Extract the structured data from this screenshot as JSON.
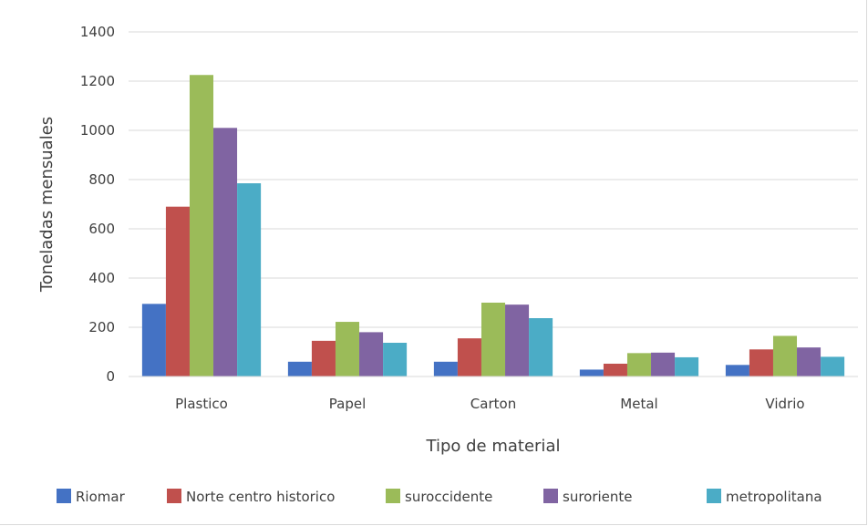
{
  "chart_data": {
    "type": "bar",
    "title": "",
    "xlabel": "Tipo de material",
    "ylabel": "Toneladas mensuales",
    "ylim": [
      0,
      1400
    ],
    "yticks": [
      0,
      200,
      400,
      600,
      800,
      1000,
      1200,
      1400
    ],
    "grid": true,
    "legend_position": "bottom",
    "categories": [
      "Plastico",
      "Papel",
      "Carton",
      "Metal",
      "Vidrio"
    ],
    "series": [
      {
        "name": "Riomar",
        "color": "#4472c4",
        "values": [
          295,
          60,
          60,
          28,
          47
        ]
      },
      {
        "name": "Norte centro historico",
        "color": "#c0504d",
        "values": [
          690,
          145,
          155,
          52,
          110
        ]
      },
      {
        "name": "suroccidente",
        "color": "#9bbb59",
        "values": [
          1225,
          222,
          300,
          95,
          165
        ]
      },
      {
        "name": "suroriente",
        "color": "#8064a2",
        "values": [
          1010,
          180,
          292,
          97,
          118
        ]
      },
      {
        "name": "metropolitana",
        "color": "#4bacc6",
        "values": [
          785,
          137,
          237,
          78,
          80
        ]
      }
    ]
  }
}
